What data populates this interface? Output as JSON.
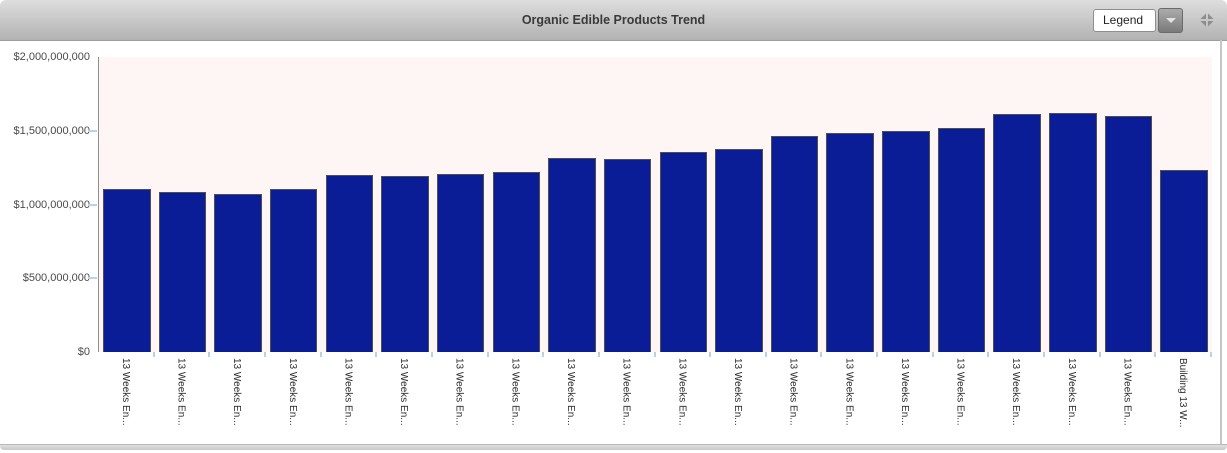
{
  "widget": {
    "title": "Organic Edible Products Trend",
    "legend_label": "Legend"
  },
  "chart_data": {
    "type": "bar",
    "title": "Organic Edible Products Trend",
    "categories": [
      "13 Weeks En...",
      "13 Weeks En...",
      "13 Weeks En...",
      "13 Weeks En...",
      "13 Weeks En...",
      "13 Weeks En...",
      "13 Weeks En...",
      "13 Weeks En...",
      "13 Weeks En...",
      "13 Weeks En...",
      "13 Weeks En...",
      "13 Weeks En...",
      "13 Weeks En...",
      "13 Weeks En...",
      "13 Weeks En...",
      "13 Weeks En...",
      "13 Weeks En...",
      "13 Weeks En...",
      "13 Weeks En...",
      "Building 13 W..."
    ],
    "values": [
      1100000000,
      1075000000,
      1065000000,
      1100000000,
      1190000000,
      1185000000,
      1200000000,
      1215000000,
      1310000000,
      1305000000,
      1350000000,
      1370000000,
      1460000000,
      1480000000,
      1495000000,
      1510000000,
      1605000000,
      1615000000,
      1595000000,
      1230000000
    ],
    "xlabel": "",
    "ylabel": "",
    "ylim": [
      0,
      2000000000
    ],
    "y_ticks": [
      "$2,000,000,000",
      "$1,500,000,000",
      "$1,000,000,000",
      "$500,000,000",
      "$0"
    ],
    "y_tick_values": [
      2000000000,
      1500000000,
      1000000000,
      500000000,
      0
    ],
    "grid": false,
    "legend_position": "header-dropdown",
    "bar_color": "#0a1c96",
    "bar_border_color": "#4f4f4f",
    "plot_bg_color": "#fdf6f5",
    "tick_color": "#b7d3e9"
  }
}
